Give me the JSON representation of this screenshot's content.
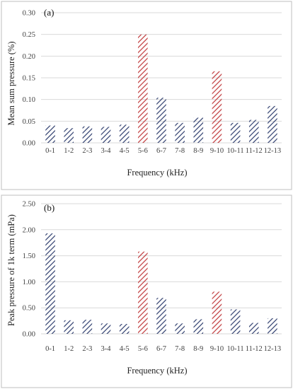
{
  "chart_data": [
    {
      "type": "bar",
      "panel_label": "(a)",
      "title": "",
      "xlabel": "Frequency (kHz)",
      "ylabel": "Mean sum pressure (%)",
      "ylim": [
        0,
        0.3
      ],
      "yticks": [
        "0.00",
        "0.05",
        "0.10",
        "0.15",
        "0.20",
        "0.25",
        "0.30"
      ],
      "grid": true,
      "categories": [
        "0-1",
        "1-2",
        "2-3",
        "3-4",
        "4-5",
        "5-6",
        "6-7",
        "7-8",
        "8-9",
        "9-10",
        "10-11",
        "11-12",
        "12-13"
      ],
      "values": [
        0.04,
        0.034,
        0.038,
        0.037,
        0.042,
        0.25,
        0.104,
        0.046,
        0.058,
        0.165,
        0.046,
        0.053,
        0.085
      ],
      "highlight": [
        5,
        9
      ],
      "colors": {
        "normal": "#2f3e6e",
        "highlight": "#c0393b"
      }
    },
    {
      "type": "bar",
      "panel_label": "(b)",
      "title": "",
      "xlabel": "Frequency (kHz)",
      "ylabel": "Peak pressure of 1k term (mPa)",
      "ylim": [
        0,
        2.5
      ],
      "yticks": [
        "0.00",
        "0.50",
        "1.00",
        "1.50",
        "2.00",
        "2.50"
      ],
      "grid": true,
      "categories": [
        "0-1",
        "1-2",
        "2-3",
        "3-4",
        "4-5",
        "5-6",
        "6-7",
        "7-8",
        "8-9",
        "9-10",
        "10-11",
        "11-12",
        "12-13"
      ],
      "values": [
        1.93,
        0.26,
        0.27,
        0.2,
        0.19,
        1.58,
        0.69,
        0.2,
        0.28,
        0.81,
        0.47,
        0.21,
        0.3
      ],
      "highlight": [
        5,
        9
      ],
      "colors": {
        "normal": "#2f3e6e",
        "highlight": "#c0393b"
      }
    }
  ]
}
